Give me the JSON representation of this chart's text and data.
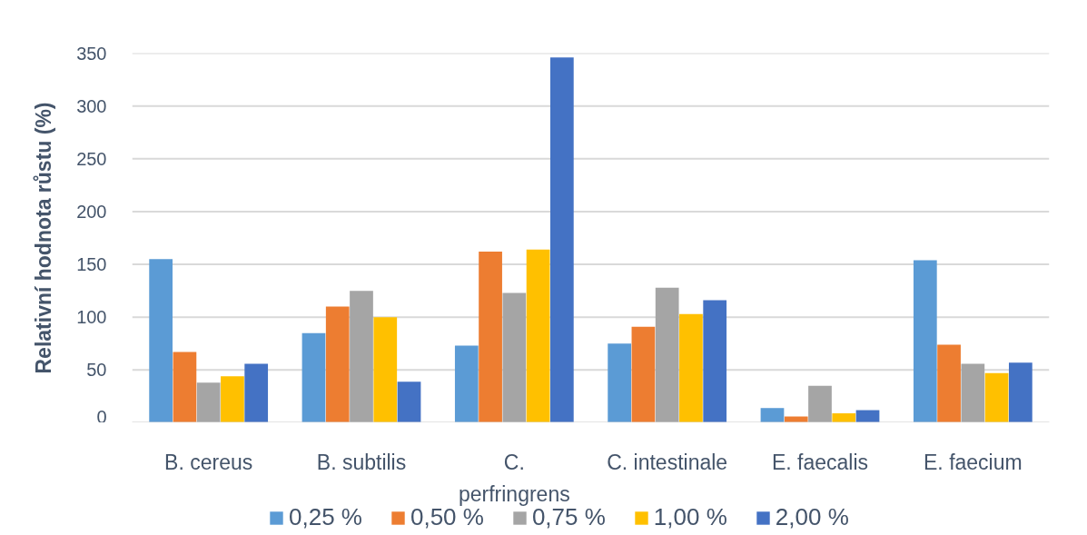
{
  "chart_data": {
    "type": "bar",
    "ylabel": "Relativní hodnota růstu (%)",
    "categories": [
      "B. cereus",
      "B. subtilis",
      "C. perfringrens",
      "C. intestinale",
      "E. faecalis",
      "E. faecium"
    ],
    "series": [
      {
        "name": "0,25 %",
        "color": "#5b9bd5",
        "values": [
          155,
          85,
          73,
          75,
          14,
          154
        ]
      },
      {
        "name": "0,50 %",
        "color": "#ed7d31",
        "values": [
          67,
          110,
          162,
          91,
          6,
          74
        ]
      },
      {
        "name": "0,75 %",
        "color": "#a5a5a5",
        "values": [
          38,
          125,
          123,
          128,
          35,
          56
        ]
      },
      {
        "name": "1,00 %",
        "color": "#ffc000",
        "values": [
          44,
          100,
          164,
          103,
          9,
          47
        ]
      },
      {
        "name": "2,00 %",
        "color": "#4472c4",
        "values": [
          56,
          39,
          346,
          116,
          12,
          57
        ]
      }
    ],
    "ylim": [
      0,
      350
    ],
    "yticks": [
      0,
      50,
      100,
      150,
      200,
      250,
      300,
      350
    ],
    "grid": "y",
    "legend": "bottom"
  }
}
